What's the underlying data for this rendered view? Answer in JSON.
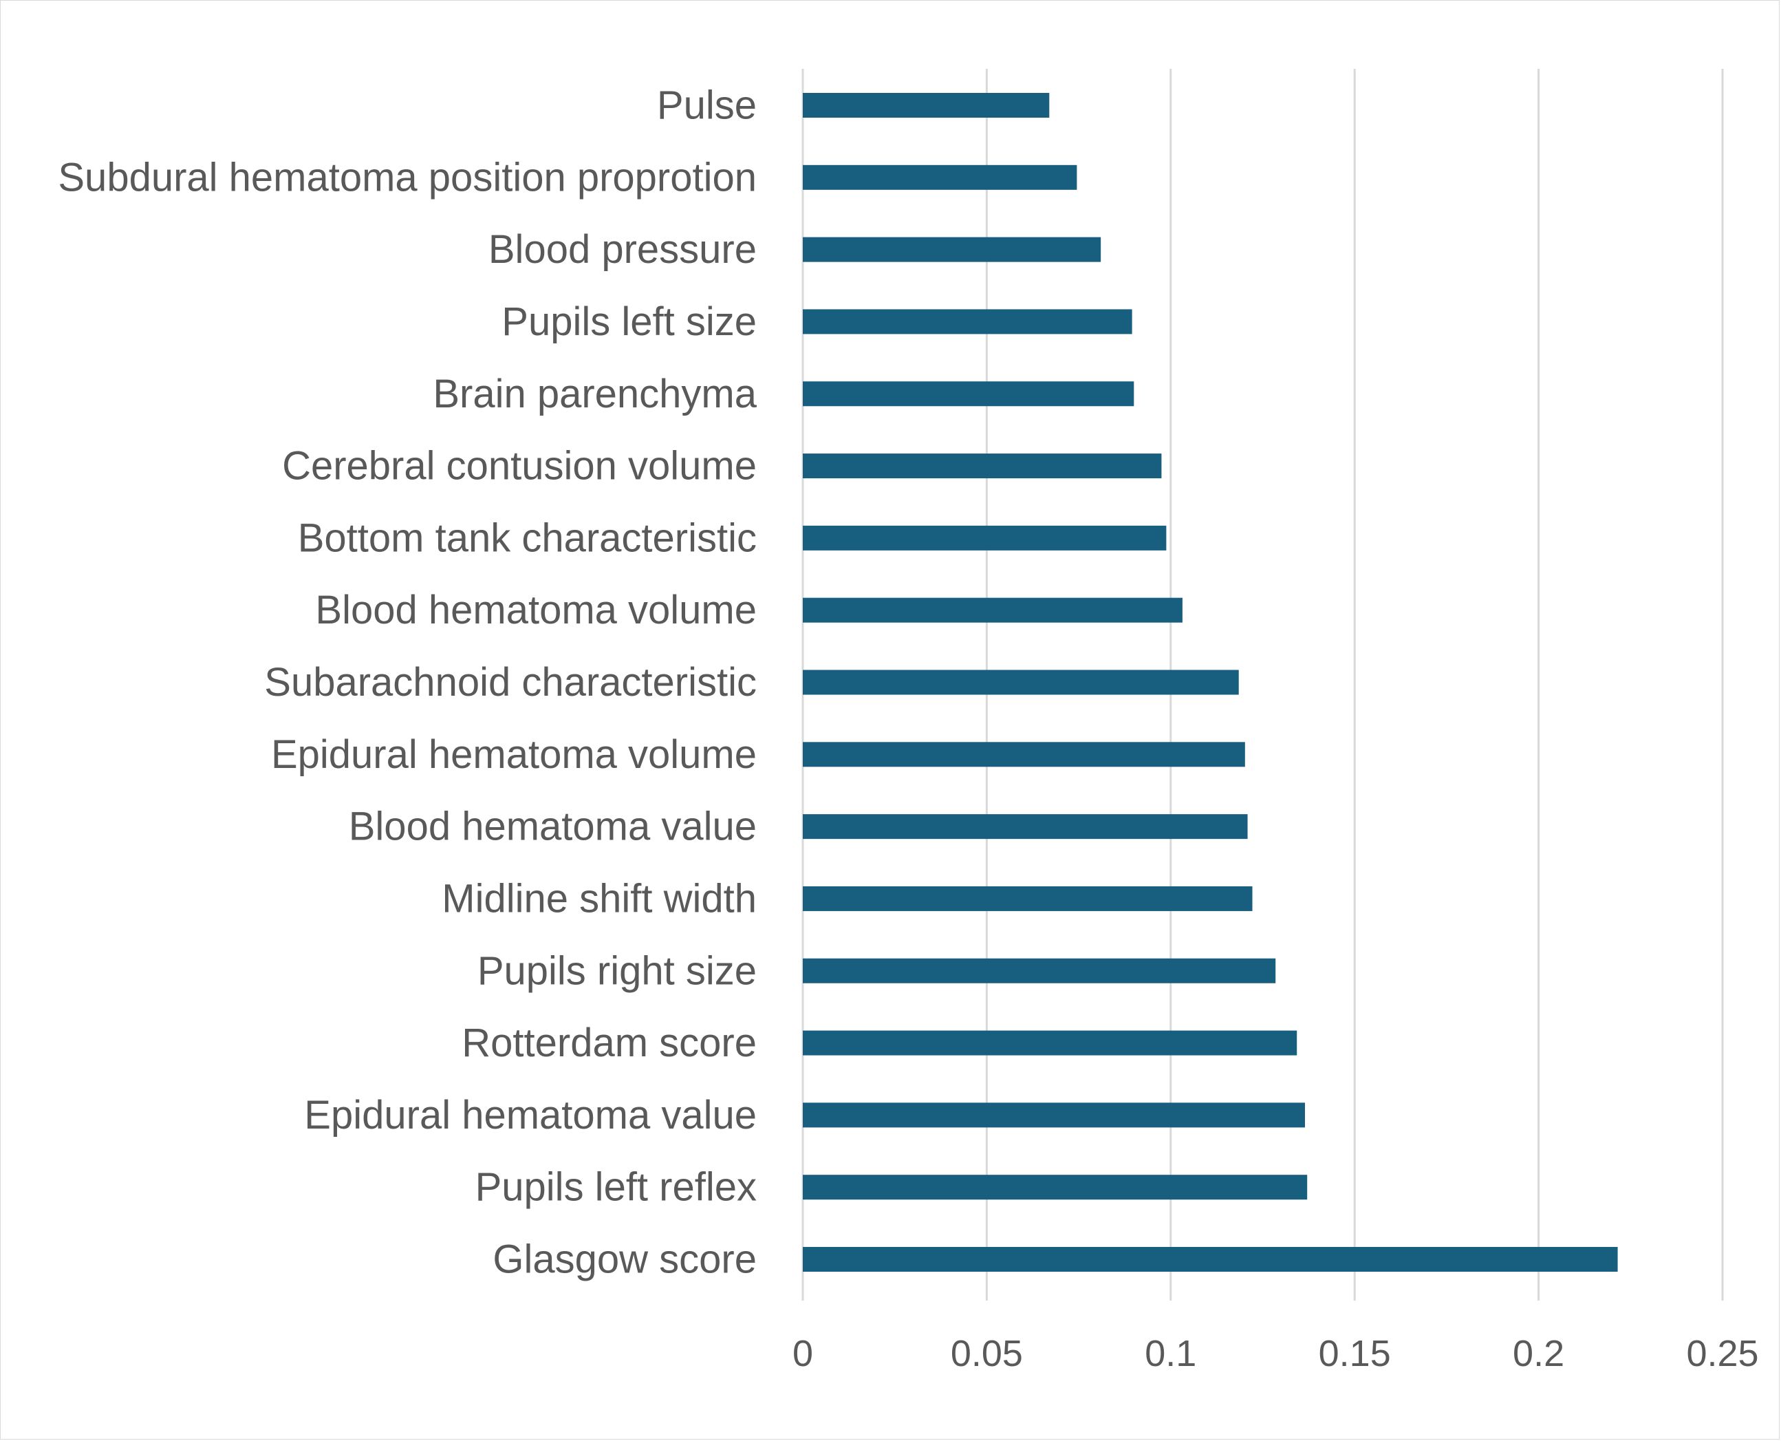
{
  "chart_data": {
    "type": "bar",
    "orientation": "horizontal",
    "title": "",
    "xlabel": "",
    "ylabel": "",
    "categories": [
      "Pulse",
      "Subdural hematoma position proprotion",
      "Blood pressure",
      "Pupils left size",
      "Brain parenchyma",
      "Cerebral contusion volume",
      "Bottom tank characteristic",
      "Blood hematoma volume",
      "Subarachnoid characteristic",
      "Epidural hematoma volume",
      "Blood hematoma value",
      "Midline shift width",
      "Pupils right size",
      "Rotterdam score",
      "Epidural hematoma value",
      "Pupils left reflex",
      "Glasgow score"
    ],
    "values": [
      0.067,
      0.0745,
      0.081,
      0.0895,
      0.09,
      0.0975,
      0.0988,
      0.1032,
      0.1185,
      0.1202,
      0.1209,
      0.1222,
      0.1285,
      0.1343,
      0.1365,
      0.1371,
      0.2215
    ],
    "xlim": [
      0,
      0.25
    ],
    "x_ticks": [
      "0",
      "0.05",
      "0.1",
      "0.15",
      "0.2",
      "0.25"
    ],
    "x_tick_values": [
      0,
      0.05,
      0.1,
      0.15,
      0.2,
      0.25
    ],
    "grid": "vertical",
    "legend": "none",
    "bar_color": "#175e7f",
    "gridline_color": "#d9d9d9",
    "text_color": "#595959"
  }
}
